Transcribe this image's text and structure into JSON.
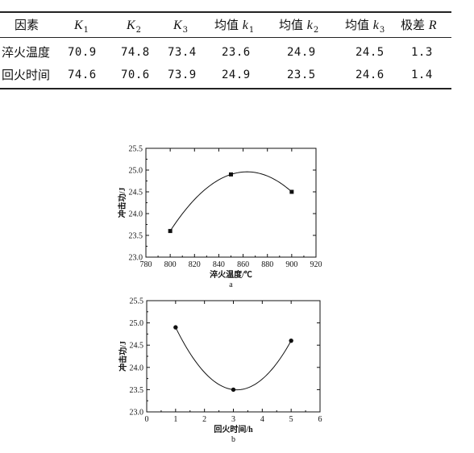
{
  "table": {
    "headers": [
      {
        "text": "因素"
      },
      {
        "main": "K",
        "sub": "1"
      },
      {
        "main": "K",
        "sub": "2"
      },
      {
        "main": "K",
        "sub": "3"
      },
      {
        "pre": "均值 ",
        "main": "k",
        "sub": "1"
      },
      {
        "pre": "均值 ",
        "main": "k",
        "sub": "2"
      },
      {
        "pre": "均值 ",
        "main": "k",
        "sub": "3"
      },
      {
        "pre": "极差 ",
        "main": "R"
      }
    ],
    "rows": [
      {
        "factor": "淬火温度",
        "values": [
          "70.9",
          "74.8",
          "73.4",
          "23.6",
          "24.9",
          "24.5",
          "1.3"
        ]
      },
      {
        "factor": "回火时间",
        "values": [
          "74.6",
          "70.6",
          "73.9",
          "24.9",
          "23.5",
          "24.6",
          "1.4"
        ]
      }
    ]
  },
  "chart_data": [
    {
      "type": "scatter",
      "panel": "a",
      "xlabel": "淬火温度/℃",
      "ylabel": "冲击功/J",
      "xlim": [
        780,
        920
      ],
      "ylim": [
        23.0,
        25.5
      ],
      "xticks": [
        "780",
        "800",
        "820",
        "840",
        "860",
        "880",
        "900",
        "920"
      ],
      "yticks": [
        "23.0",
        "23.5",
        "24.0",
        "24.5",
        "25.0",
        "25.5"
      ],
      "marker": "square",
      "points": [
        {
          "x": 800,
          "y": 23.6
        },
        {
          "x": 850,
          "y": 24.9
        },
        {
          "x": 900,
          "y": 24.5
        }
      ],
      "fit": "quadratic",
      "grid": false
    },
    {
      "type": "scatter",
      "panel": "b",
      "xlabel": "回火时间/h",
      "ylabel": "冲击功/J",
      "xlim": [
        0,
        6
      ],
      "ylim": [
        23.0,
        25.5
      ],
      "xticks": [
        "0",
        "1",
        "2",
        "3",
        "4",
        "5",
        "6"
      ],
      "yticks": [
        "23.0",
        "23.5",
        "24.0",
        "24.5",
        "25.0",
        "25.5"
      ],
      "marker": "circle",
      "points": [
        {
          "x": 1,
          "y": 24.9
        },
        {
          "x": 3,
          "y": 23.5
        },
        {
          "x": 5,
          "y": 24.6
        }
      ],
      "fit": "quadratic",
      "grid": false
    }
  ]
}
